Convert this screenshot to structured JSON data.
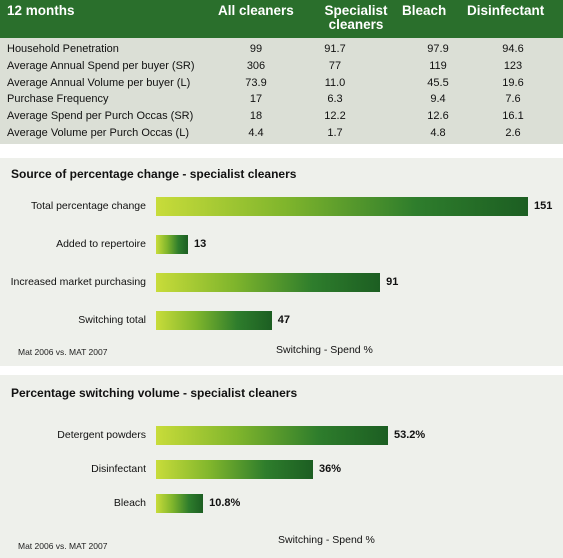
{
  "table": {
    "headers": [
      "12 months",
      "All cleaners",
      "Specialist\ncleaners",
      "Bleach",
      "Disinfectant"
    ],
    "rows": [
      {
        "label": "Household Penetration",
        "values": [
          "99",
          "91.7",
          "97.9",
          "94.6"
        ]
      },
      {
        "label": "Average Annual Spend per buyer (SR)",
        "values": [
          "306",
          "77",
          "119",
          "123"
        ]
      },
      {
        "label": "Average Annual Volume per buyer (L)",
        "values": [
          "73.9",
          "11.0",
          "45.5",
          "19.6"
        ]
      },
      {
        "label": "Purchase Frequency",
        "values": [
          "17",
          "6.3",
          "9.4",
          "7.6"
        ]
      },
      {
        "label": "Average Spend per Purch Occas (SR)",
        "values": [
          "18",
          "12.2",
          "12.6",
          "16.1"
        ]
      },
      {
        "label": "Average Volume per Purch Occas (L)",
        "values": [
          "4.4",
          "1.7",
          "4.8",
          "2.6"
        ]
      }
    ]
  },
  "chart_data": [
    {
      "type": "bar",
      "orientation": "horizontal",
      "title": "Source of percentage change - specialist cleaners",
      "categories": [
        "Total percentage change",
        "Added to repertoire",
        "Increased market purchasing",
        "Switching total"
      ],
      "values": [
        151,
        13,
        91,
        47
      ],
      "data_labels": [
        "151",
        "13",
        "91",
        "47"
      ],
      "xlabel": "Switching - Spend %",
      "xlim": [
        0,
        151
      ],
      "footnote": "Mat 2006 vs. MAT 2007"
    },
    {
      "type": "bar",
      "orientation": "horizontal",
      "title": "Percentage switching volume - specialist cleaners",
      "categories": [
        "Detergent powders",
        "Disinfectant",
        "Bleach"
      ],
      "values": [
        53.2,
        36,
        10.8
      ],
      "data_labels": [
        "53.2%",
        "36%",
        "10.8%"
      ],
      "xlabel": "Switching - Spend %",
      "xlim": [
        0,
        53.2
      ],
      "footnote": "Mat 2006 vs. MAT 2007"
    }
  ]
}
